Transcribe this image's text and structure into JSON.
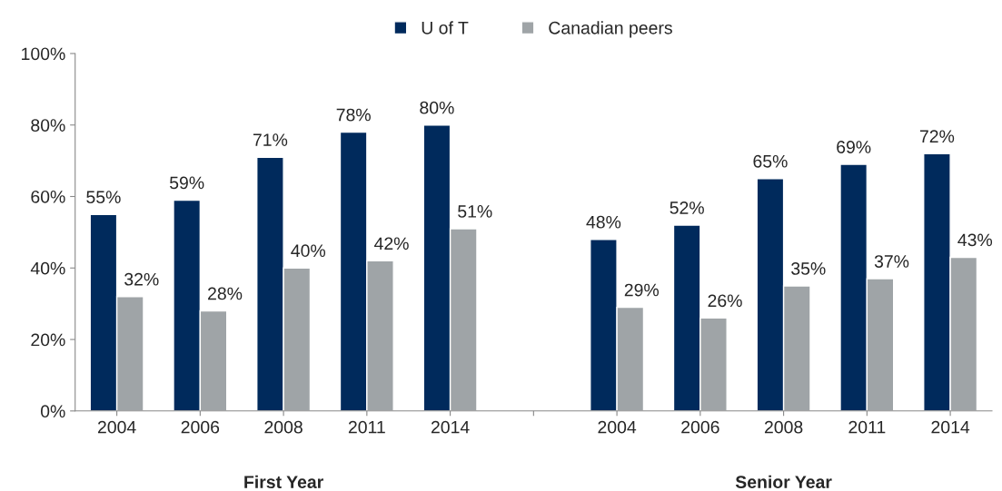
{
  "chart_data": {
    "type": "bar",
    "categories": [
      "2004",
      "2006",
      "2008",
      "2011",
      "2014",
      null,
      "2004",
      "2006",
      "2008",
      "2011",
      "2014"
    ],
    "series": [
      {
        "name": "U of T",
        "color": "#002a5c",
        "values": [
          55,
          59,
          71,
          78,
          80,
          null,
          48,
          52,
          65,
          69,
          72
        ],
        "value_labels": [
          "55%",
          "59%",
          "71%",
          "78%",
          "80%",
          null,
          "48%",
          "52%",
          "65%",
          "69%",
          "72%"
        ]
      },
      {
        "name": "Canadian peers",
        "color": "#9fa4a7",
        "values": [
          32,
          28,
          40,
          42,
          51,
          null,
          29,
          26,
          35,
          37,
          43
        ],
        "value_labels": [
          "32%",
          "28%",
          "40%",
          "42%",
          "51%",
          null,
          "29%",
          "26%",
          "35%",
          "37%",
          "43%"
        ]
      }
    ],
    "ylim": [
      0,
      100
    ],
    "yticks": [
      {
        "value": 0,
        "label": "0%"
      },
      {
        "value": 20,
        "label": "20%"
      },
      {
        "value": 40,
        "label": "40%"
      },
      {
        "value": 60,
        "label": "60%"
      },
      {
        "value": 80,
        "label": "80%"
      },
      {
        "value": 100,
        "label": "100%"
      }
    ],
    "annotations": [
      "First Year",
      "Senior Year"
    ],
    "legend": "top",
    "grid": false
  }
}
